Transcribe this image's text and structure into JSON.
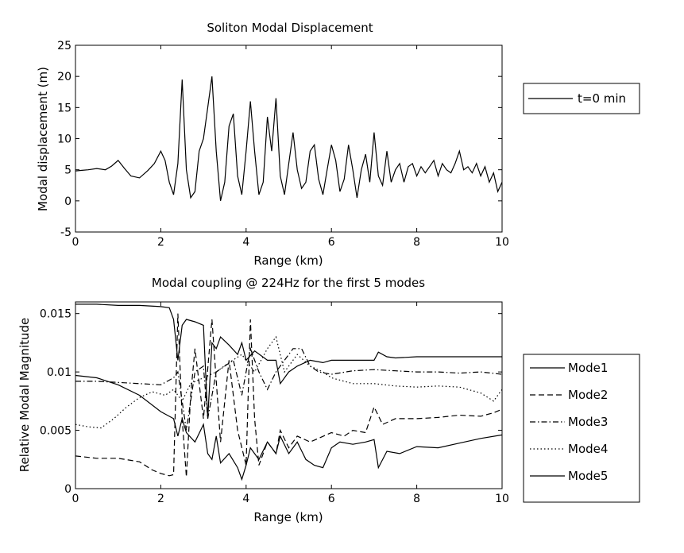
{
  "chart_data": [
    {
      "type": "line",
      "title": "Soliton Modal Displacement",
      "xlabel": "Range (km)",
      "ylabel": "Modal displacement (m)",
      "xlim": [
        0,
        10
      ],
      "ylim": [
        -5,
        25
      ],
      "xticks": [
        0,
        2,
        4,
        6,
        8,
        10
      ],
      "yticks": [
        -5,
        0,
        5,
        10,
        15,
        20,
        25
      ],
      "grid": false,
      "legend_position": "outside-right",
      "series": [
        {
          "name": "t=0 min",
          "dash": "solid",
          "x": [
            0,
            0.15,
            0.3,
            0.5,
            0.7,
            0.85,
            1.0,
            1.15,
            1.3,
            1.5,
            1.7,
            1.85,
            2.0,
            2.1,
            2.2,
            2.3,
            2.4,
            2.5,
            2.6,
            2.7,
            2.8,
            2.9,
            3.0,
            3.1,
            3.2,
            3.3,
            3.4,
            3.5,
            3.6,
            3.7,
            3.8,
            3.9,
            4.0,
            4.1,
            4.2,
            4.3,
            4.4,
            4.5,
            4.6,
            4.7,
            4.8,
            4.9,
            5.0,
            5.1,
            5.2,
            5.3,
            5.4,
            5.5,
            5.6,
            5.7,
            5.8,
            5.9,
            6.0,
            6.1,
            6.2,
            6.3,
            6.4,
            6.5,
            6.6,
            6.7,
            6.8,
            6.9,
            7.0,
            7.1,
            7.2,
            7.3,
            7.4,
            7.5,
            7.6,
            7.7,
            7.8,
            7.9,
            8.0,
            8.1,
            8.2,
            8.3,
            8.4,
            8.5,
            8.6,
            8.7,
            8.8,
            8.9,
            9.0,
            9.1,
            9.2,
            9.3,
            9.4,
            9.5,
            9.6,
            9.7,
            9.8,
            9.9,
            10.0
          ],
          "y": [
            4.8,
            4.9,
            5.0,
            5.2,
            5.0,
            5.6,
            6.5,
            5.2,
            4.0,
            3.7,
            4.9,
            6.0,
            8.0,
            6.5,
            3.0,
            1.0,
            6.0,
            19.5,
            5.0,
            0.5,
            1.5,
            8.0,
            10.0,
            15.0,
            20.0,
            8.0,
            0.0,
            3.0,
            12.0,
            14.0,
            4.0,
            1.0,
            8.0,
            16.0,
            8.0,
            1.0,
            3.0,
            13.5,
            8.0,
            16.5,
            4.0,
            1.0,
            6.0,
            11.0,
            5.0,
            2.0,
            3.0,
            8.0,
            9.0,
            3.5,
            1.0,
            5.0,
            9.0,
            6.5,
            1.5,
            3.5,
            9.0,
            5.0,
            0.5,
            5.0,
            7.5,
            3.0,
            11.0,
            4.0,
            2.5,
            8.0,
            3.0,
            5.0,
            6.0,
            3.0,
            5.5,
            6.0,
            4.0,
            5.5,
            4.5,
            5.5,
            6.5,
            4.0,
            6.0,
            5.0,
            4.5,
            6.0,
            8.0,
            5.0,
            5.5,
            4.5,
            6.0,
            4.0,
            5.5,
            3.0,
            4.5,
            1.5,
            3.0
          ]
        }
      ]
    },
    {
      "type": "line",
      "title": "Modal coupling @ 224Hz for the first 5 modes",
      "xlabel": "Range (km)",
      "ylabel": "Relative Modal Magnitude",
      "xlim": [
        0,
        10
      ],
      "ylim": [
        0,
        0.016
      ],
      "xticks": [
        0,
        2,
        4,
        6,
        8,
        10
      ],
      "yticks": [
        0,
        0.005,
        0.01,
        0.015
      ],
      "grid": false,
      "legend_position": "outside-right",
      "series": [
        {
          "name": "Mode1",
          "dash": "solid",
          "x": [
            0,
            0.5,
            1.0,
            1.5,
            2.0,
            2.3,
            2.4,
            2.5,
            2.6,
            2.8,
            3.0,
            3.1,
            3.2,
            3.3,
            3.4,
            3.6,
            3.8,
            3.9,
            4.0,
            4.1,
            4.3,
            4.5,
            4.7,
            4.8,
            5.0,
            5.2,
            5.4,
            5.6,
            5.8,
            6.0,
            6.2,
            6.5,
            6.8,
            7.0,
            7.1,
            7.3,
            7.6,
            8.0,
            8.5,
            9.0,
            9.5,
            10.0
          ],
          "y": [
            0.0097,
            0.0095,
            0.0089,
            0.008,
            0.0066,
            0.006,
            0.0045,
            0.006,
            0.0048,
            0.004,
            0.0055,
            0.003,
            0.0025,
            0.0045,
            0.0022,
            0.003,
            0.0018,
            0.0008,
            0.002,
            0.0035,
            0.0025,
            0.004,
            0.003,
            0.0045,
            0.003,
            0.004,
            0.0025,
            0.002,
            0.0018,
            0.0035,
            0.004,
            0.0038,
            0.004,
            0.0042,
            0.0018,
            0.0032,
            0.003,
            0.0036,
            0.0035,
            0.0039,
            0.0043,
            0.0046
          ]
        },
        {
          "name": "Mode2",
          "dash": "dashed",
          "x": [
            0,
            0.5,
            1.0,
            1.5,
            1.8,
            2.0,
            2.2,
            2.3,
            2.4,
            2.5,
            2.6,
            2.7,
            2.8,
            3.0,
            3.2,
            3.4,
            3.6,
            3.8,
            4.0,
            4.1,
            4.2,
            4.3,
            4.5,
            4.7,
            4.8,
            5.0,
            5.2,
            5.5,
            6.0,
            6.3,
            6.5,
            6.8,
            7.0,
            7.2,
            7.5,
            8.0,
            8.5,
            9.0,
            9.5,
            9.8,
            10.0
          ],
          "y": [
            0.0028,
            0.0026,
            0.0026,
            0.0023,
            0.0016,
            0.0013,
            0.0011,
            0.0012,
            0.015,
            0.006,
            0.001,
            0.008,
            0.012,
            0.006,
            0.0145,
            0.004,
            0.011,
            0.005,
            0.002,
            0.0145,
            0.006,
            0.002,
            0.004,
            0.003,
            0.005,
            0.0035,
            0.0045,
            0.004,
            0.0048,
            0.0045,
            0.005,
            0.0048,
            0.007,
            0.0055,
            0.006,
            0.006,
            0.0061,
            0.0063,
            0.0062,
            0.0065,
            0.0068
          ]
        },
        {
          "name": "Mode3",
          "dash": "dashdot",
          "x": [
            0,
            0.5,
            1.0,
            1.5,
            2.0,
            2.3,
            2.4,
            2.6,
            2.8,
            3.0,
            3.1,
            3.3,
            3.5,
            3.7,
            3.9,
            4.1,
            4.3,
            4.5,
            4.7,
            4.9,
            5.1,
            5.3,
            5.5,
            5.7,
            6.0,
            6.5,
            7.0,
            7.5,
            8.0,
            8.5,
            9.0,
            9.5,
            10.0
          ],
          "y": [
            0.0092,
            0.0092,
            0.0091,
            0.009,
            0.0089,
            0.0095,
            0.01,
            0.005,
            0.01,
            0.0105,
            0.006,
            0.01,
            0.0105,
            0.011,
            0.008,
            0.012,
            0.01,
            0.0085,
            0.01,
            0.011,
            0.012,
            0.012,
            0.0105,
            0.01,
            0.0098,
            0.0101,
            0.0102,
            0.0101,
            0.01,
            0.01,
            0.0099,
            0.01,
            0.0098
          ]
        },
        {
          "name": "Mode4",
          "dash": "dotted",
          "x": [
            0,
            0.3,
            0.6,
            0.9,
            1.2,
            1.5,
            1.8,
            2.1,
            2.3,
            2.5,
            2.7,
            3.0,
            3.3,
            3.6,
            3.9,
            4.2,
            4.5,
            4.7,
            4.9,
            5.2,
            5.5,
            5.8,
            6.0,
            6.5,
            7.0,
            7.5,
            8.0,
            8.5,
            9.0,
            9.5,
            9.8,
            10.0
          ],
          "y": [
            0.0055,
            0.0053,
            0.0052,
            0.006,
            0.007,
            0.0078,
            0.0083,
            0.008,
            0.0085,
            0.0075,
            0.009,
            0.0095,
            0.01,
            0.0108,
            0.0115,
            0.01,
            0.012,
            0.013,
            0.01,
            0.0115,
            0.0105,
            0.01,
            0.0095,
            0.009,
            0.009,
            0.0088,
            0.0087,
            0.0088,
            0.0087,
            0.0082,
            0.0075,
            0.0085
          ]
        },
        {
          "name": "Mode5",
          "dash": "solid",
          "x": [
            0,
            0.5,
            1.0,
            1.5,
            2.0,
            2.2,
            2.3,
            2.4,
            2.5,
            2.6,
            2.8,
            3.0,
            3.1,
            3.2,
            3.3,
            3.4,
            3.6,
            3.8,
            3.9,
            4.0,
            4.2,
            4.5,
            4.7,
            4.8,
            5.0,
            5.2,
            5.5,
            5.8,
            6.0,
            6.5,
            7.0,
            7.1,
            7.3,
            7.5,
            8.0,
            8.5,
            9.0,
            9.5,
            10.0
          ],
          "y": [
            0.0158,
            0.0158,
            0.0157,
            0.0157,
            0.0156,
            0.0155,
            0.0145,
            0.011,
            0.014,
            0.0145,
            0.0143,
            0.014,
            0.006,
            0.0125,
            0.012,
            0.013,
            0.0123,
            0.0115,
            0.0125,
            0.011,
            0.0118,
            0.011,
            0.011,
            0.009,
            0.01,
            0.0105,
            0.011,
            0.0108,
            0.011,
            0.011,
            0.011,
            0.0117,
            0.0113,
            0.0112,
            0.0113,
            0.0113,
            0.0113,
            0.0113,
            0.0113
          ]
        }
      ]
    }
  ]
}
